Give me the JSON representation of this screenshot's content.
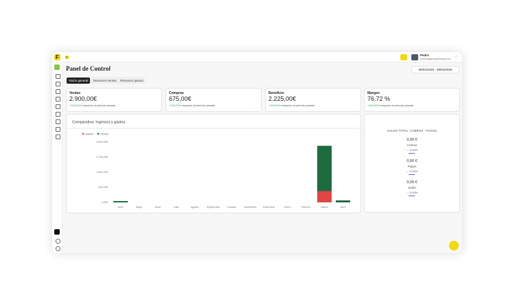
{
  "topbar": {
    "logo": "F",
    "badge": "F",
    "user_name": "Pedro",
    "user_email": "pedrosagarduy@factupro.es"
  },
  "header": {
    "title": "Panel de Control",
    "date_range": "08/04/2025 - 08/04/2026"
  },
  "tabs": [
    "Visión general",
    "Resumen ventas",
    "Resumen gastos"
  ],
  "cards": [
    {
      "label": "Ventas",
      "value": "2.900,00€",
      "change": "+100,00%",
      "note": "respecto al periodo pasado"
    },
    {
      "label": "Compras",
      "value": "675,00€",
      "change": "+100,00%",
      "note": "respecto al periodo pasado"
    },
    {
      "label": "Beneficio",
      "value": "2.225,00€",
      "change": "+100,00%",
      "note": "respecto al periodo pasado"
    },
    {
      "label": "Margen",
      "value": "76.72 %",
      "change": "+100,00%",
      "note": "respecto al periodo pasado"
    }
  ],
  "chart_data": {
    "type": "stacked_bar",
    "title": "Comparativa: Ingresos y gastos",
    "categories": [
      "Abril",
      "Mayo",
      "Junio",
      "Julio",
      "Agosto",
      "Septiembre",
      "Octubre",
      "Noviembre",
      "Diciembre",
      "Enero",
      "Febrero",
      "Marzo",
      "Abril"
    ],
    "series": [
      {
        "name": "Gastos",
        "color": "#e04646",
        "values": [
          0,
          0,
          0,
          0,
          0,
          0,
          0,
          0,
          0,
          0,
          0,
          675,
          0
        ]
      },
      {
        "name": "Ventas",
        "color": "#1e6b40",
        "values": [
          80,
          0,
          0,
          0,
          0,
          0,
          0,
          0,
          0,
          0,
          0,
          2700,
          120
        ]
      }
    ],
    "ylim": [
      0,
      3600
    ],
    "yticks": [
      {
        "value": 0,
        "label": "0,00€"
      },
      {
        "value": 900,
        "label": "900,00€"
      },
      {
        "value": 1800,
        "label": "1.800,00€"
      },
      {
        "value": 2700,
        "label": "2.700,00€"
      },
      {
        "value": 3600,
        "label": "3.600,00€"
      }
    ],
    "legend": "top-left",
    "grid": false
  },
  "balance": {
    "title": "SALDO TOTAL: COBROS - PAGOS",
    "items": [
      {
        "amount": "0,00 €",
        "label": "Cobros",
        "change": "— 0,00%"
      },
      {
        "amount": "0,00 €",
        "label": "Pagos",
        "change": "— 0,00%"
      },
      {
        "amount": "0,00 €",
        "label": "Saldo",
        "change": "— 0,00%"
      }
    ]
  }
}
